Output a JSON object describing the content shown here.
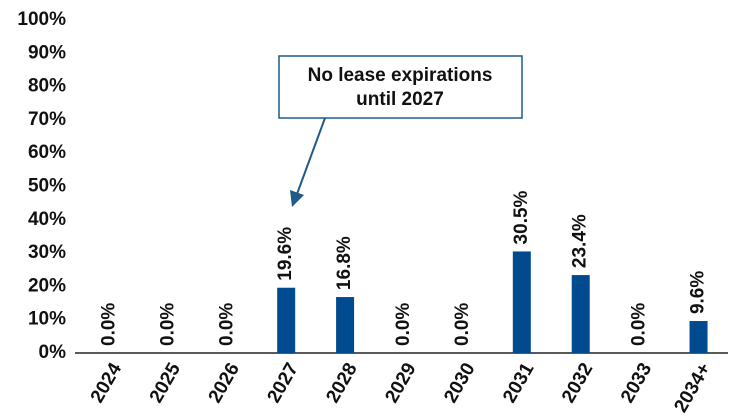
{
  "chart_data": {
    "type": "bar",
    "categories": [
      "2024",
      "2025",
      "2026",
      "2027",
      "2028",
      "2029",
      "2030",
      "2031",
      "2032",
      "2033",
      "2034+"
    ],
    "values": [
      0,
      0,
      0,
      19.6,
      16.8,
      0,
      0,
      30.5,
      23.4,
      0,
      9.6
    ],
    "value_labels": [
      "0.0%",
      "0.0%",
      "0.0%",
      "19.6%",
      "16.8%",
      "0.0%",
      "0.0%",
      "30.5%",
      "23.4%",
      "0.0%",
      "9.6%"
    ],
    "color": "#004a8f",
    "ylim": [
      0,
      100
    ],
    "yticks": [
      {
        "value": 0,
        "label": "0%"
      },
      {
        "value": 10,
        "label": "10%"
      },
      {
        "value": 20,
        "label": "20%"
      },
      {
        "value": 30,
        "label": "30%"
      },
      {
        "value": 40,
        "label": "40%"
      },
      {
        "value": 50,
        "label": "50%"
      },
      {
        "value": 60,
        "label": "60%"
      },
      {
        "value": 70,
        "label": "70%"
      },
      {
        "value": 80,
        "label": "80%"
      },
      {
        "value": 90,
        "label": "90%"
      },
      {
        "value": 100,
        "label": "100%"
      }
    ],
    "grid": false,
    "annotation": [
      "No lease expirations",
      "until 2027"
    ]
  }
}
